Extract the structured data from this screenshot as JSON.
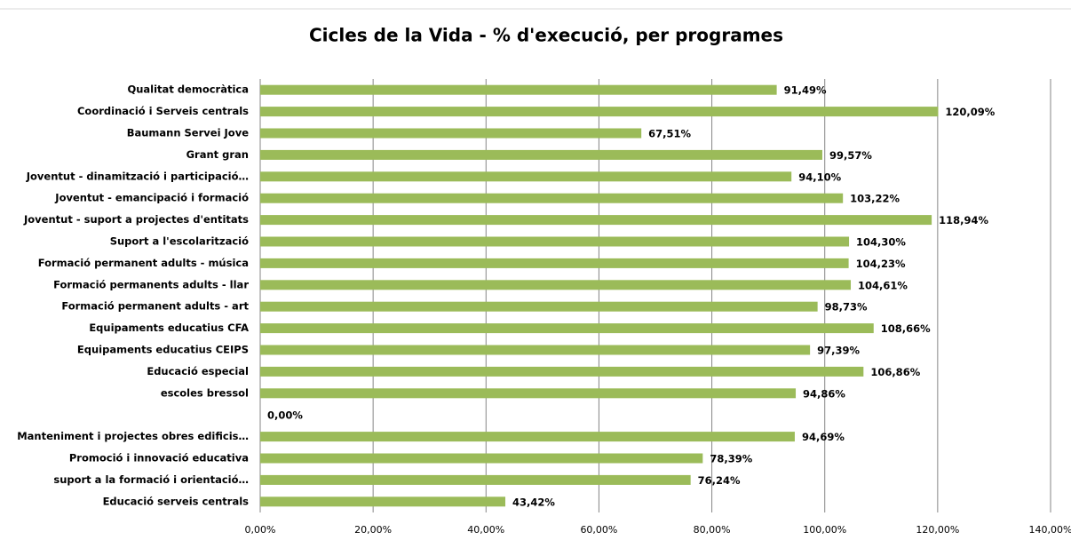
{
  "chart_data": {
    "type": "bar",
    "orientation": "horizontal",
    "title": "Cicles de la Vida -  % d'execució, per programes",
    "categories": [
      "Qualitat democràtica",
      "Coordinació i Serveis centrals",
      "Baumann Servei Jove",
      "Grant gran",
      "Joventut - dinamització i participació…",
      "Joventut - emancipació i formació",
      "Joventut - suport a projectes d'entitats",
      "Suport a l'escolarització",
      "Formació permanent adults - música",
      "Formació permanents adults - llar",
      "Formació permanent adults - art",
      "Equipaments educatius CFA",
      "Equipaments educatius CEIPS",
      "Educació especial",
      "escoles bressol",
      null,
      "Manteniment i projectes obres edificis…",
      "Promoció i innovació educativa",
      "suport a la formació i orientació…",
      "Educació serveis centrals"
    ],
    "values": [
      91.49,
      120.09,
      67.51,
      99.57,
      94.1,
      103.22,
      118.94,
      104.3,
      104.23,
      104.61,
      98.73,
      108.66,
      97.39,
      106.86,
      94.86,
      0,
      94.69,
      78.39,
      76.24,
      43.42
    ],
    "value_labels": [
      "91,49%",
      "120,09%",
      "67,51%",
      "99,57%",
      "94,10%",
      "103,22%",
      "118,94%",
      "104,30%",
      "104,23%",
      "104,61%",
      "98,73%",
      "108,66%",
      "97,39%",
      "106,86%",
      "94,86%",
      "0,00%",
      "94,69%",
      "78,39%",
      "76,24%",
      "43,42%"
    ],
    "color": "#9bbb59",
    "xlim": [
      0,
      140
    ],
    "xticks": [
      {
        "value": 0,
        "label": "0,00%"
      },
      {
        "value": 20,
        "label": "20,00%"
      },
      {
        "value": 40,
        "label": "40,00%"
      },
      {
        "value": 60,
        "label": "60,00%"
      },
      {
        "value": 80,
        "label": "80,00%"
      },
      {
        "value": 100,
        "label": "100,00%"
      },
      {
        "value": 120,
        "label": "120,00%"
      },
      {
        "value": 140,
        "label": "140,00%"
      }
    ],
    "grid": true
  }
}
